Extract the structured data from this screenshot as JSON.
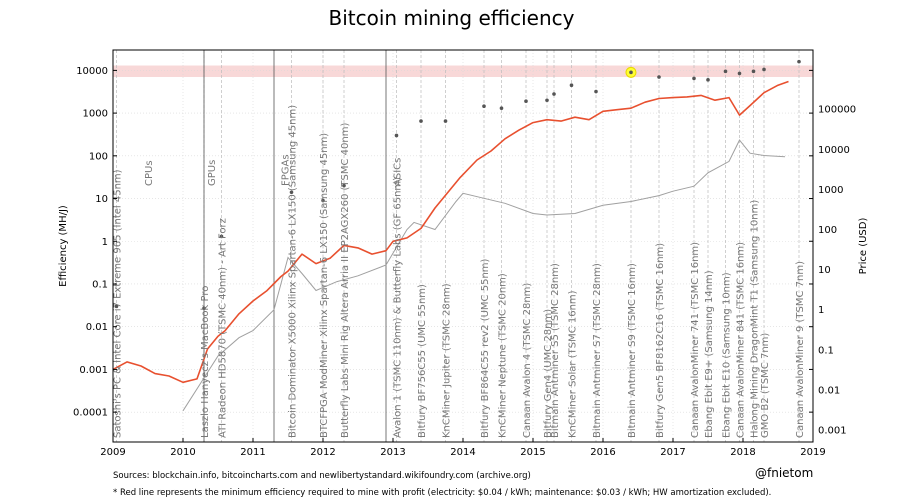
{
  "chart_data": {
    "type": "line",
    "title": "Bitcoin mining efficiency",
    "ylabel": "Efficiency (MH/J)",
    "y2label": "Price (USD)",
    "x_range": [
      2009,
      2019
    ],
    "ylim": [
      2e-05,
      30000
    ],
    "y2lim": [
      0.0005,
      3000000
    ],
    "y_scale": "log",
    "y2_scale": "log",
    "x_ticks": [
      "2009",
      "2010",
      "2011",
      "2012",
      "2013",
      "2014",
      "2015",
      "2016",
      "2017",
      "2018",
      "2019"
    ],
    "y_ticks": [
      {
        "value": 0.0001,
        "label": "0.0001"
      },
      {
        "value": 0.001,
        "label": "0.001"
      },
      {
        "value": 0.01,
        "label": "0.01"
      },
      {
        "value": 0.1,
        "label": "0.1"
      },
      {
        "value": 1,
        "label": "1"
      },
      {
        "value": 10,
        "label": "10"
      },
      {
        "value": 100,
        "label": "100"
      },
      {
        "value": 1000,
        "label": "1000"
      },
      {
        "value": 10000,
        "label": "10000"
      }
    ],
    "y2_ticks": [
      {
        "value": 0.001,
        "label": "0.001"
      },
      {
        "value": 0.01,
        "label": "0.01"
      },
      {
        "value": 0.1,
        "label": "0.1"
      },
      {
        "value": 1,
        "label": "1"
      },
      {
        "value": 10,
        "label": "10"
      },
      {
        "value": 100,
        "label": "100"
      },
      {
        "value": 1000,
        "label": "1000"
      },
      {
        "value": 10000,
        "label": "10000"
      },
      {
        "value": 100000,
        "label": "100000"
      }
    ],
    "band": {
      "from": 7000,
      "to": 13000,
      "color": "#f8d8d8"
    },
    "eras": [
      {
        "x": 2010.3,
        "label": "CPUs",
        "label_x": 2009.5
      },
      {
        "x": 2011.3,
        "label": "GPUs",
        "label_x": 2010.4
      },
      {
        "x": 2012.9,
        "label": "FPGAs",
        "label_x": 2011.45
      },
      {
        "x": null,
        "label": "ASICs",
        "label_x": 2013.05
      }
    ],
    "hardware": [
      {
        "x": 2009.05,
        "y": 0.03,
        "label": "Satoshi's PC & Intel Core i7 Extreme 965 (Intel 45nm)"
      },
      {
        "x": 2010.3,
        "y": 0.027,
        "label": "Laszlo Hanyecz's MacBook Pro"
      },
      {
        "x": 2010.55,
        "y": 1.3,
        "label": "ATI Radeon HD5870 (TSMC 40nm) - Art Forz"
      },
      {
        "x": 2011.55,
        "y": 14,
        "label": "Bitcoin Dominator X5000 Xilinx Spartan-6 LX150 (Samsung 45nm)"
      },
      {
        "x": 2012.0,
        "y": 9,
        "label": "BTCFPGA ModMiner Xilinx Spartan-6 LX150 (Samsung 45nm)"
      },
      {
        "x": 2012.3,
        "y": 20,
        "label": "Butterfly Labs Mini Rig Altera Arria II EP2AGX260 (TSMC 40nm)"
      },
      {
        "x": 2013.05,
        "y": 300,
        "label": "Avalon 1 (TSMC 110nm) & Butterfly Labs (GF 65nm)"
      },
      {
        "x": 2013.4,
        "y": 650,
        "label": "Bitfury BF756C55 (UMC 55nm)"
      },
      {
        "x": 2013.75,
        "y": 650,
        "label": "KnCMiner Jupiter (TSMC 28nm)"
      },
      {
        "x": 2014.3,
        "y": 1450,
        "label": "Bitfury BF864C55 rev2 (UMC 55nm)"
      },
      {
        "x": 2014.55,
        "y": 1300,
        "label": "KnCMiner Neptune (TSMC 20nm)"
      },
      {
        "x": 2014.9,
        "y": 1900,
        "label": "Canaan Avalon 4 (TSMC 28nm)"
      },
      {
        "x": 2015.2,
        "y": 2000,
        "label": "Bitfury Gen4 (UMC 28nm)"
      },
      {
        "x": 2015.3,
        "y": 2800,
        "label": "Bitmain Antminer S5 (TSMC 28nm)"
      },
      {
        "x": 2015.55,
        "y": 4500,
        "label": "KnCMiner Solar (TSMC 16nm)"
      },
      {
        "x": 2015.9,
        "y": 3200,
        "label": "Bitmain Antminer S7 (TSMC 28nm)"
      },
      {
        "x": 2016.4,
        "y": 9000,
        "label": "Bitmain Antminer S9 (TSMC 16nm)"
      },
      {
        "x": 2016.8,
        "y": 7000,
        "label": "Bitfury Gen5 BF8162C16 (TSMC 16nm)"
      },
      {
        "x": 2017.3,
        "y": 6500,
        "label": "Canaan AvalonMiner 741 (TSMC 16nm)"
      },
      {
        "x": 2017.5,
        "y": 6000,
        "label": "Ebang Ebit E9+ (Samsung 14nm)"
      },
      {
        "x": 2017.75,
        "y": 9500,
        "label": "Ebang Ebit E10 (Samsung 10nm)"
      },
      {
        "x": 2017.95,
        "y": 8500,
        "label": "Canaan AvalonMiner 841 (TSMC 16nm)"
      },
      {
        "x": 2018.15,
        "y": 9500,
        "label": "Halong Mining DragonMint T1 (Samsung 10nm)"
      },
      {
        "x": 2018.3,
        "y": 10500,
        "label": "GMO B2 (TSMC 7nm)"
      },
      {
        "x": 2018.8,
        "y": 16000,
        "label": "Canaan AvalonMiner 9 (TSMC 7nm)"
      }
    ],
    "highlight_point": {
      "x": 2016.4,
      "y": 9000
    },
    "min_efficiency_series": {
      "name": "Minimum efficiency required to mine with profit",
      "color": "#e8502f",
      "x": [
        2009.0,
        2009.2,
        2009.4,
        2009.6,
        2009.8,
        2010.0,
        2010.2,
        2010.35,
        2010.5,
        2010.6,
        2010.8,
        2011.0,
        2011.2,
        2011.4,
        2011.5,
        2011.7,
        2011.9,
        2012.1,
        2012.3,
        2012.5,
        2012.7,
        2012.9,
        2013.0,
        2013.2,
        2013.4,
        2013.6,
        2013.8,
        2013.95,
        2014.2,
        2014.4,
        2014.6,
        2014.8,
        2015.0,
        2015.2,
        2015.4,
        2015.6,
        2015.8,
        2016.0,
        2016.2,
        2016.4,
        2016.6,
        2016.8,
        2017.0,
        2017.2,
        2017.4,
        2017.6,
        2017.8,
        2017.95,
        2018.1,
        2018.3,
        2018.5,
        2018.65
      ],
      "y": [
        0.001,
        0.0015,
        0.0012,
        0.0008,
        0.0007,
        0.0005,
        0.0006,
        0.003,
        0.006,
        0.008,
        0.02,
        0.04,
        0.07,
        0.15,
        0.2,
        0.5,
        0.3,
        0.4,
        0.8,
        0.7,
        0.5,
        0.6,
        1.0,
        1.2,
        2.0,
        6.0,
        15,
        30,
        80,
        130,
        250,
        400,
        600,
        700,
        650,
        800,
        700,
        1100,
        1200,
        1300,
        1800,
        2200,
        2300,
        2400,
        2600,
        2000,
        2300,
        900,
        1500,
        3000,
        4500,
        5500
      ]
    },
    "price_series": {
      "name": "Price (USD)",
      "color": "#a0a0a0",
      "x": [
        2010.0,
        2010.5,
        2010.8,
        2011.0,
        2011.3,
        2011.5,
        2011.7,
        2011.9,
        2012.2,
        2012.5,
        2012.9,
        2013.2,
        2013.3,
        2013.6,
        2013.9,
        2014.0,
        2014.3,
        2014.6,
        2015.0,
        2015.2,
        2015.6,
        2016.0,
        2016.4,
        2016.8,
        2017.0,
        2017.3,
        2017.5,
        2017.8,
        2017.95,
        2018.1,
        2018.3,
        2018.6
      ],
      "y": [
        0.003,
        0.07,
        0.2,
        0.3,
        1,
        20,
        8,
        3,
        5,
        7,
        13,
        100,
        150,
        100,
        500,
        800,
        600,
        450,
        250,
        230,
        250,
        400,
        500,
        700,
        900,
        1200,
        2600,
        5000,
        17000,
        8000,
        7000,
        6500
      ]
    }
  },
  "footnotes": {
    "sources": "Sources: blockchain.info, bitcoincharts.com and newlibertystandard.wikifoundry.com (archive.org)",
    "note": "* Red line represents the minimum efficiency required to mine with profit (electricity: $0.04 / kWh; maintenance: $0.03 / kWh; HW amortization excluded)."
  },
  "credit": "@fnietom"
}
